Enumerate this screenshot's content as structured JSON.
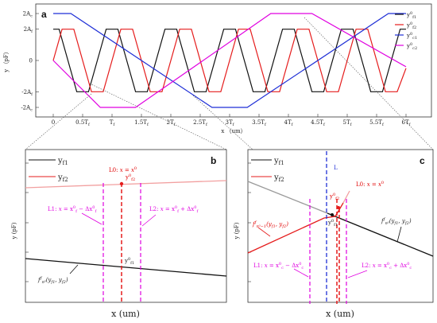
{
  "colors": {
    "black": "#111111",
    "red": "#e51c1c",
    "blue": "#1f2fd6",
    "magenta": "#e000e0",
    "pink": "#f2a0a0",
    "grey": "#9a9a9a"
  },
  "chart_data": [
    {
      "panel": "a",
      "type": "line",
      "xlabel": "x （um）",
      "ylabel": "y （pF）",
      "xticks": [
        "0",
        "0.5T_f",
        "T_f",
        "1.5T_f",
        "2T_f",
        "2.5T_f",
        "3T_f",
        "3.5T_f",
        "4T_f",
        "4.5T_f",
        "5T_f",
        "5.5T_f",
        "6T_f"
      ],
      "yticks": [
        "2A_c",
        "2A_f",
        "0",
        "-2A_f",
        "-2A_c"
      ],
      "legend": [
        "y^0_f1",
        "y^0_f2",
        "y^0_c1",
        "y^0_c2"
      ],
      "legend_position": "top-right",
      "series": [
        {
          "name": "y^0_f1",
          "color": "#111111",
          "points": [
            [
              0,
              1
            ],
            [
              0.1,
              1
            ],
            [
              0.4,
              -1
            ],
            [
              0.6,
              -1
            ],
            [
              0.9,
              1
            ],
            [
              1.1,
              1
            ],
            [
              1.4,
              -1
            ],
            [
              1.6,
              -1
            ],
            [
              1.9,
              1
            ],
            [
              2.1,
              1
            ],
            [
              2.4,
              -1
            ],
            [
              2.6,
              -1
            ],
            [
              2.9,
              1
            ],
            [
              3.1,
              1
            ],
            [
              3.4,
              -1
            ],
            [
              3.6,
              -1
            ],
            [
              3.9,
              1
            ],
            [
              4.1,
              1
            ],
            [
              4.4,
              -1
            ],
            [
              4.6,
              -1
            ],
            [
              4.9,
              1
            ],
            [
              5.1,
              1
            ],
            [
              5.4,
              -1
            ],
            [
              5.6,
              -1
            ],
            [
              5.9,
              1
            ],
            [
              6,
              1
            ]
          ]
        },
        {
          "name": "y^0_f2",
          "color": "#e51c1c",
          "points": [
            [
              0,
              0
            ],
            [
              0.15,
              1
            ],
            [
              0.35,
              1
            ],
            [
              0.65,
              -1
            ],
            [
              0.85,
              -1
            ],
            [
              1.15,
              1
            ],
            [
              1.35,
              1
            ],
            [
              1.65,
              -1
            ],
            [
              1.85,
              -1
            ],
            [
              2.15,
              1
            ],
            [
              2.35,
              1
            ],
            [
              2.65,
              -1
            ],
            [
              2.85,
              -1
            ],
            [
              3.15,
              1
            ],
            [
              3.35,
              1
            ],
            [
              3.65,
              -1
            ],
            [
              3.85,
              -1
            ],
            [
              4.15,
              1
            ],
            [
              4.35,
              1
            ],
            [
              4.65,
              -1
            ],
            [
              4.85,
              -1
            ],
            [
              5.15,
              1
            ],
            [
              5.35,
              1
            ],
            [
              5.65,
              -1
            ],
            [
              5.85,
              -1
            ],
            [
              6,
              -0.25
            ]
          ]
        },
        {
          "name": "y^0_c1",
          "color": "#1f2fd6",
          "points": [
            [
              0,
              1.5
            ],
            [
              0.3,
              1.5
            ],
            [
              2.7,
              -1.5
            ],
            [
              3.3,
              -1.5
            ],
            [
              5.7,
              1.5
            ],
            [
              6,
              1.5
            ]
          ]
        },
        {
          "name": "y^0_c2",
          "color": "#e000e0",
          "points": [
            [
              0,
              0
            ],
            [
              0.8,
              -1.5
            ],
            [
              1.4,
              -1.5
            ],
            [
              3.7,
              1.5
            ],
            [
              4.4,
              1.5
            ],
            [
              6,
              -0.2
            ]
          ]
        }
      ]
    },
    {
      "panel": "b",
      "type": "line",
      "xlabel": "x  (um)",
      "ylabel": "y  (pF)",
      "legend": [
        "y_f1",
        "y_f2"
      ],
      "legend_position": "top-left",
      "annotations": [
        "L0: x = x^0",
        "L1: x = x^0_f − Δx^0_f",
        "L2: x = x^0_f + Δx^0_f",
        "y^0_f2",
        "y^0_f1",
        "f^f_n0(y_f1, y_f2)"
      ]
    },
    {
      "panel": "c",
      "type": "line",
      "xlabel": "x  (um)",
      "ylabel": "y  (pF)",
      "legend": [
        "y_f1",
        "y_f2"
      ],
      "legend_position": "top-left",
      "annotations": [
        "L",
        "L0: x = x^0",
        "y^0_f2",
        "y^0_f1",
        "f^f_n0−1(y_f1, y_f2)",
        "f^f_n0(y_f1, y_f2)",
        "L1: x = x^0_c − Δx^0_c",
        "L2: x = x^0_c + Δx^0_c"
      ]
    }
  ]
}
